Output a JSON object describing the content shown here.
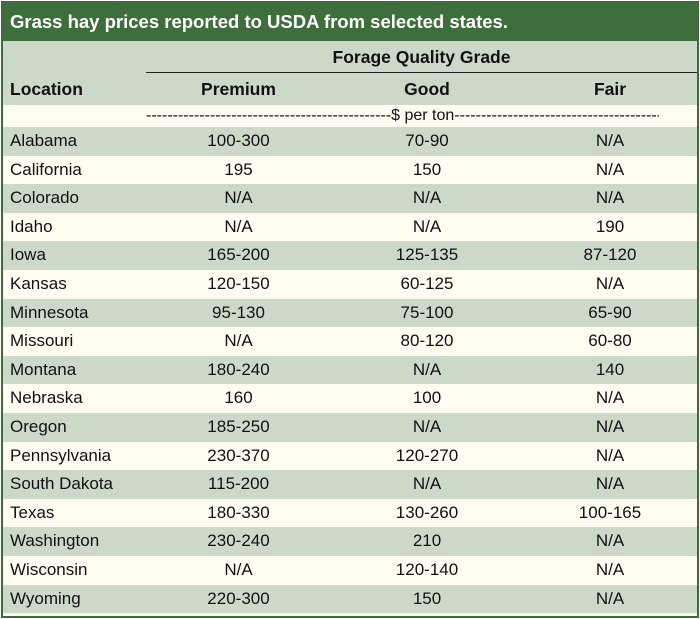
{
  "title": "Grass hay prices reported to USDA from selected states.",
  "header": {
    "group_label": "Forage Quality Grade",
    "location": "Location",
    "premium": "Premium",
    "good": "Good",
    "fair": "Fair"
  },
  "unit_label": "----------------------------------------------$ per ton---------------------------------------------",
  "rows": [
    {
      "location": "Alabama",
      "premium": "100-300",
      "good": "70-90",
      "fair": "N/A"
    },
    {
      "location": "California",
      "premium": "195",
      "good": "150",
      "fair": "N/A"
    },
    {
      "location": "Colorado",
      "premium": "N/A",
      "good": "N/A",
      "fair": "N/A"
    },
    {
      "location": "Idaho",
      "premium": "N/A",
      "good": "N/A",
      "fair": "190"
    },
    {
      "location": "Iowa",
      "premium": "165-200",
      "good": "125-135",
      "fair": "87-120"
    },
    {
      "location": "Kansas",
      "premium": "120-150",
      "good": "60-125",
      "fair": "N/A"
    },
    {
      "location": "Minnesota",
      "premium": "95-130",
      "good": "75-100",
      "fair": "65-90"
    },
    {
      "location": "Missouri",
      "premium": "N/A",
      "good": "80-120",
      "fair": "60-80"
    },
    {
      "location": "Montana",
      "premium": "180-240",
      "good": "N/A",
      "fair": "140"
    },
    {
      "location": "Nebraska",
      "premium": "160",
      "good": "100",
      "fair": "N/A"
    },
    {
      "location": "Oregon",
      "premium": "185-250",
      "good": "N/A",
      "fair": "N/A"
    },
    {
      "location": "Pennsylvania",
      "premium": "230-370",
      "good": "120-270",
      "fair": "N/A"
    },
    {
      "location": "South Dakota",
      "premium": "115-200",
      "good": "N/A",
      "fair": "N/A"
    },
    {
      "location": "Texas",
      "premium": "180-330",
      "good": "130-260",
      "fair": "100-165"
    },
    {
      "location": "Washington",
      "premium": "230-240",
      "good": "210",
      "fair": "N/A"
    },
    {
      "location": "Wisconsin",
      "premium": "N/A",
      "good": "120-140",
      "fair": "N/A"
    },
    {
      "location": "Wyoming",
      "premium": "220-300",
      "good": "150",
      "fair": "N/A"
    }
  ],
  "colors": {
    "title_bg": "#3e6e3b",
    "band": "#ccd9c9",
    "cream": "#fffdf2"
  }
}
